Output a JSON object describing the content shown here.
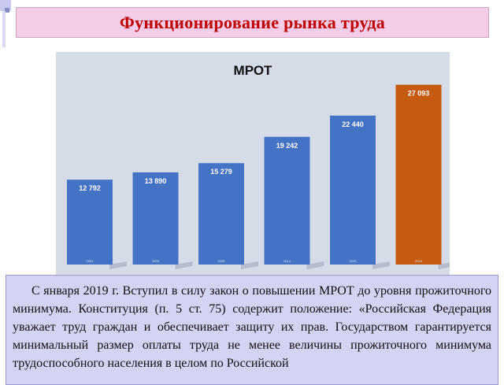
{
  "slide": {
    "title": "Функционирование рынка труда",
    "paragraph": "С января 2019 г. Вступил в силу закон о повышении МРОТ до уровня прожиточного минимума. Конституция (п. 5 ст. 75) содержит положение: «Российская Федерация уважает труд граждан и обеспечивает защиту их прав. Государством гарантируется минимальный размер оплаты труда не менее величины прожиточного минимума трудоспособного населения в целом по Российской"
  },
  "colors": {
    "title_bg": "#f5cde9",
    "title_text": "#c00000",
    "chart_bg": "#d6dbe8",
    "bar_blue": "#4472c4",
    "bar_orange": "#c55a11",
    "text_box_bg": "#d3d3f4"
  },
  "chart_data": {
    "type": "bar",
    "title": "МРОТ",
    "categories": [
      "2001",
      "2005",
      "2008",
      "2014",
      "2020",
      "2024"
    ],
    "values": [
      12792,
      13890,
      15279,
      19242,
      22440,
      27093
    ],
    "value_labels": [
      "12 792",
      "13 890",
      "15 279",
      "19 242",
      "22 440",
      "27 093"
    ],
    "highlight_index": 5,
    "ylim": [
      0,
      28000
    ],
    "grid": false,
    "xlabel": "",
    "ylabel": ""
  }
}
